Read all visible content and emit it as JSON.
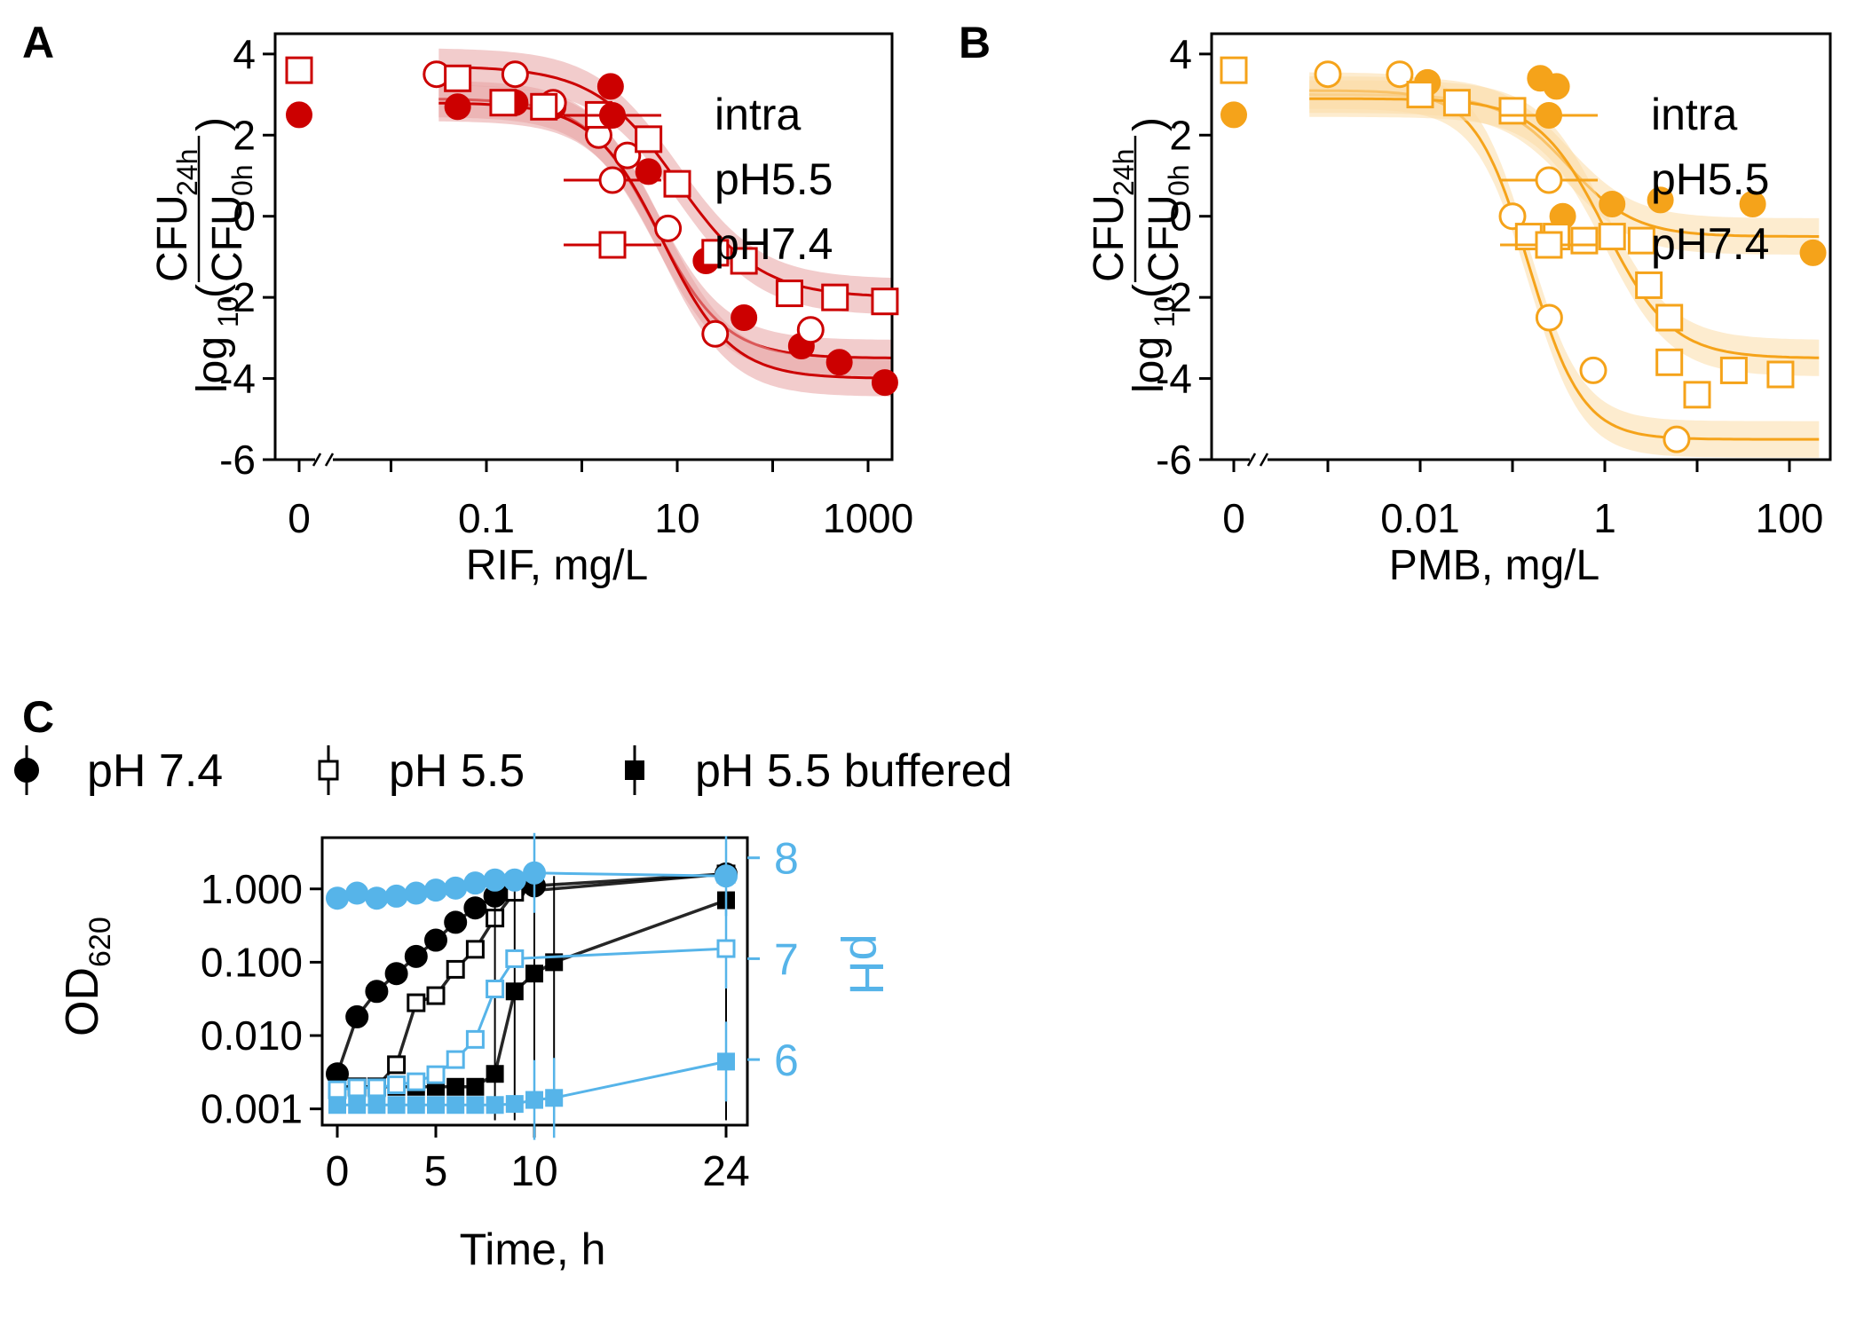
{
  "chart_data": [
    {
      "panel": "A",
      "type": "scatter",
      "title": "",
      "xlabel": "RIF, mg/L",
      "ylabel": "log10(CFU24h/CFU0h)",
      "ylabel_parts": {
        "log": "log",
        "sub10": "10",
        "num": "CFU",
        "num_sub": "24h",
        "den": "CFU",
        "den_sub": "0h"
      },
      "xscale": "log",
      "xticks": [
        "0",
        "0.1",
        "10",
        "1000"
      ],
      "yticks": [
        "4",
        "2",
        "0",
        "-2",
        "-4",
        "-6"
      ],
      "ylim": [
        -6,
        4.5
      ],
      "color": "#cc0000",
      "band_color": "#e8a3a3",
      "legend_position": "top-right",
      "zero_value_text": "0",
      "series": [
        {
          "name": "intra",
          "marker": "filled-circle",
          "x": [
            0,
            0.05,
            0.2,
            0.5,
            2,
            5,
            20,
            50,
            200,
            500,
            1500
          ],
          "y": [
            2.5,
            2.7,
            2.8,
            2.7,
            3.2,
            1.1,
            -1.1,
            -2.5,
            -3.2,
            -3.6,
            -4.1
          ],
          "fit": {
            "top": 2.9,
            "bottom": -3.5,
            "ec50": 6,
            "hill": 1.2
          }
        },
        {
          "name": "pH5.5",
          "marker": "open-circle",
          "x": [
            0.03,
            0.2,
            0.5,
            1.5,
            3,
            8,
            25,
            250
          ],
          "y": [
            3.5,
            3.5,
            2.8,
            2.0,
            1.5,
            -0.3,
            -2.9,
            -2.8
          ],
          "fit": {
            "top": 2.8,
            "bottom": -4.0,
            "ec50": 7,
            "hill": 1.2
          }
        },
        {
          "name": "pH7.4",
          "marker": "open-square",
          "x": [
            0,
            0.05,
            0.15,
            0.4,
            1.5,
            5,
            10,
            25,
            50,
            150,
            450,
            1500
          ],
          "y": [
            3.6,
            3.4,
            2.8,
            2.7,
            2.5,
            1.9,
            0.8,
            -0.9,
            -1.1,
            -1.9,
            -2.0,
            -2.1
          ],
          "fit": {
            "top": 3.7,
            "bottom": -2.0,
            "ec50": 10,
            "hill": 1.0
          }
        }
      ]
    },
    {
      "panel": "B",
      "type": "scatter",
      "title": "",
      "xlabel": "PMB, mg/L",
      "ylabel": "log10(CFU24h/CFU0h)",
      "ylabel_parts": {
        "log": "log",
        "sub10": "10",
        "num": "CFU",
        "num_sub": "24h",
        "den": "CFU",
        "den_sub": "0h"
      },
      "xscale": "log",
      "xticks": [
        "0",
        "0.01",
        "1",
        "100"
      ],
      "yticks": [
        "4",
        "2",
        "0",
        "-2",
        "-4",
        "-6"
      ],
      "ylim": [
        -6,
        4.5
      ],
      "color": "#f5a31a",
      "band_color": "#fbdca8",
      "legend_position": "top-right",
      "zero_value_text": "0",
      "series": [
        {
          "name": "intra",
          "marker": "filled-circle",
          "x": [
            0,
            0.012,
            0.2,
            0.3,
            0.35,
            1.2,
            4,
            40,
            180
          ],
          "y": [
            2.5,
            3.3,
            3.4,
            3.2,
            0.0,
            0.3,
            0.4,
            0.3,
            -0.9
          ],
          "fit": {
            "top": 3.0,
            "bottom": -0.5,
            "ec50": 0.4,
            "hill": 1.2
          }
        },
        {
          "name": "pH5.5",
          "marker": "open-circle",
          "x": [
            0.001,
            0.006,
            0.1,
            0.25,
            0.75,
            6
          ],
          "y": [
            3.5,
            3.5,
            0.0,
            -2.5,
            -3.8,
            -5.5
          ],
          "fit": {
            "top": 3.1,
            "bottom": -5.5,
            "ec50": 0.15,
            "hill": 1.5
          }
        },
        {
          "name": "pH7.4",
          "marker": "open-square",
          "x": [
            0,
            0.01,
            0.025,
            0.1,
            0.15,
            0.3,
            0.6,
            1.2,
            2.5,
            3,
            5,
            10,
            5,
            25,
            80
          ],
          "y": [
            3.6,
            3.0,
            2.8,
            2.6,
            -0.5,
            -0.5,
            -0.6,
            -0.5,
            -0.6,
            -1.7,
            -2.5,
            -4.4,
            -3.6,
            -3.8,
            -3.9
          ],
          "fit": {
            "top": 2.9,
            "bottom": -3.5,
            "ec50": 1.0,
            "hill": 1.2
          }
        }
      ]
    },
    {
      "panel": "C",
      "type": "line",
      "title": "",
      "xlabel": "Time, h",
      "ylabel_left": "OD620",
      "ylabel_left_parts": {
        "main": "OD",
        "sub": "620"
      },
      "ylabel_right": "pH",
      "xticks": [
        "0",
        "5",
        "10",
        "24"
      ],
      "yticks_left": [
        "1.000",
        "0.100",
        "0.010",
        "0.001"
      ],
      "yticks_right": [
        "8",
        "7",
        "6"
      ],
      "y_left_scale": "log",
      "y_left_range": [
        0.0006,
        5
      ],
      "y_right_range": [
        5.35,
        8.2
      ],
      "od_color": "#000000",
      "ph_color": "#56b4e9",
      "legend_position": "top",
      "series": [
        {
          "name": "pH 7.4",
          "marker": "filled-circle",
          "axis": "left",
          "x": [
            0,
            1,
            2,
            3,
            4,
            5,
            6,
            7,
            8,
            9,
            10,
            24
          ],
          "y": [
            0.003,
            0.018,
            0.04,
            0.07,
            0.12,
            0.2,
            0.35,
            0.55,
            0.8,
            1.0,
            1.1,
            1.6
          ]
        },
        {
          "name": "pH 5.5",
          "marker": "open-square",
          "axis": "left",
          "x": [
            0,
            1,
            2,
            3,
            4,
            5,
            6,
            7,
            8,
            9,
            24
          ],
          "y": [
            0.002,
            0.002,
            0.002,
            0.004,
            0.028,
            0.035,
            0.08,
            0.15,
            0.4,
            0.9,
            1.6
          ]
        },
        {
          "name": "pH 5.5 buffered",
          "marker": "filled-square",
          "axis": "left",
          "x": [
            0,
            1,
            2,
            3,
            4,
            5,
            6,
            7,
            8,
            9,
            10,
            11,
            24
          ],
          "y": [
            0.002,
            0.002,
            0.002,
            0.002,
            0.002,
            0.002,
            0.002,
            0.002,
            0.003,
            0.04,
            0.07,
            0.1,
            0.7
          ]
        },
        {
          "name": "pH 7.4 pH",
          "marker": "filled-circle",
          "axis": "right",
          "x": [
            0,
            1,
            2,
            3,
            4,
            5,
            6,
            7,
            8,
            9,
            10,
            24
          ],
          "y": [
            7.6,
            7.65,
            7.6,
            7.62,
            7.65,
            7.68,
            7.7,
            7.75,
            7.78,
            7.78,
            7.85,
            7.82
          ]
        },
        {
          "name": "pH 5.5 pH",
          "marker": "open-square",
          "axis": "right",
          "x": [
            0,
            1,
            2,
            3,
            4,
            5,
            6,
            7,
            8,
            9,
            24
          ],
          "y": [
            5.7,
            5.72,
            5.72,
            5.75,
            5.78,
            5.85,
            6.0,
            6.2,
            6.7,
            7.0,
            7.1
          ]
        },
        {
          "name": "pH 5.5 buffered pH",
          "marker": "filled-square",
          "axis": "right",
          "x": [
            0,
            1,
            2,
            3,
            4,
            5,
            6,
            7,
            8,
            9,
            10,
            11,
            24
          ],
          "y": [
            5.55,
            5.55,
            5.55,
            5.55,
            5.55,
            5.55,
            5.55,
            5.55,
            5.55,
            5.56,
            5.6,
            5.62,
            5.98
          ]
        }
      ]
    }
  ],
  "panel_labels": [
    "A",
    "B",
    "C"
  ]
}
